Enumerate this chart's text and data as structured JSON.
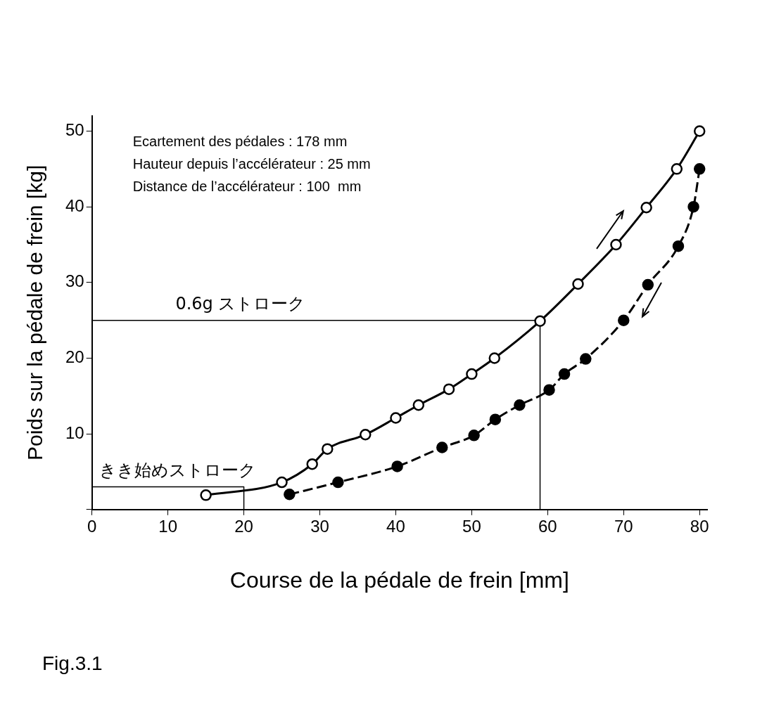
{
  "chart_data": {
    "type": "line",
    "xlabel": "Course de la pédale de frein [mm]",
    "ylabel": "Poids sur la pédale de frein [kg]",
    "xlim": [
      0,
      81
    ],
    "ylim": [
      0,
      52
    ],
    "xticks": [
      0,
      10,
      20,
      30,
      40,
      50,
      60,
      70,
      80
    ],
    "yticks": [
      {
        "value": 0,
        "label": null
      },
      10,
      20,
      30,
      40,
      50
    ],
    "grid": false,
    "legend": false,
    "marker": "circle",
    "series": [
      {
        "color": "#000000",
        "line_style": "solid",
        "x": [
          15,
          25,
          29,
          31,
          36,
          40,
          43,
          47,
          50,
          53,
          59,
          64,
          69,
          73,
          77,
          80
        ],
        "values": [
          1.9,
          3.6,
          6,
          8,
          9.9,
          12.1,
          13.8,
          15.9,
          17.9,
          20,
          24.9,
          29.8,
          35,
          39.9,
          45,
          50
        ]
      },
      {
        "color": "#000000",
        "line_style": "dashed",
        "x": [
          26,
          32.4,
          40.2,
          46.1,
          50.3,
          53.1,
          56.3,
          60.2,
          62.2,
          65,
          70,
          73.2,
          77.2,
          79.2,
          80
        ],
        "values": [
          2,
          3.6,
          5.7,
          8.2,
          9.8,
          11.9,
          13.8,
          15.8,
          17.9,
          19.9,
          25,
          29.7,
          34.8,
          40,
          45
        ]
      },
      {
        "type": "line",
        "color": "#000000",
        "line_style": "solid",
        "marker": "none",
        "x": [
          0,
          59,
          59
        ],
        "values": [
          25,
          25,
          0
        ]
      },
      {
        "type": "line",
        "color": "#000000",
        "line_style": "solid",
        "marker": "none",
        "x": [
          0,
          20,
          20
        ],
        "values": [
          3,
          3,
          0
        ]
      }
    ],
    "annotations": [
      "Ecartement des pédales : 178 mm",
      "Hauteur depuis l’accélérateur : 25 mm",
      "Distance de l’accélérateur : 100  mm",
      "Fig.3.1",
      {
        "text": "0.6g ストローク",
        "x": 11,
        "y": 25
      },
      {
        "text": "きき始めストローク",
        "x": 1,
        "y": 3
      }
    ]
  }
}
